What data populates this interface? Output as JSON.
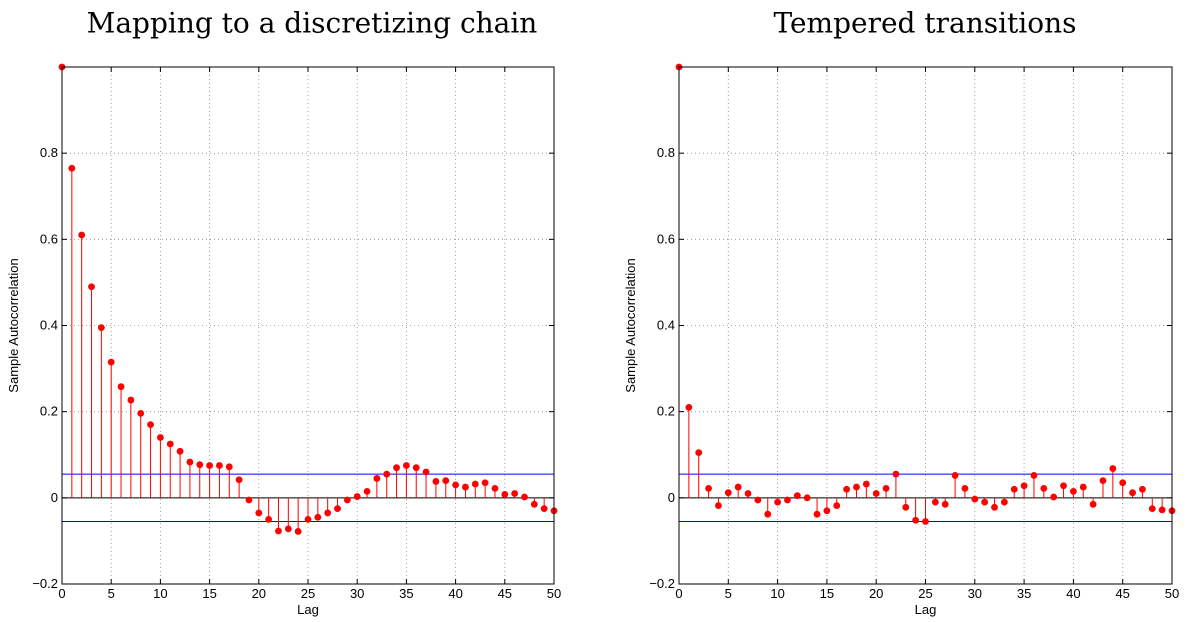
{
  "chart_data": [
    {
      "type": "stem",
      "title": "Mapping to a discretizing chain",
      "xlabel": "Lag",
      "ylabel": "Sample Autocorrelation",
      "xlim": [
        0,
        50
      ],
      "ylim": [
        -0.2,
        1
      ],
      "xticks": [
        0,
        5,
        10,
        15,
        20,
        25,
        30,
        35,
        40,
        45,
        50
      ],
      "yticks": [
        -0.2,
        0,
        0.2,
        0.4,
        0.6,
        0.8
      ],
      "ytick_labels": [
        "−0.2",
        "0",
        "0.2",
        "0.4",
        "0.6",
        "0.8"
      ],
      "grid": true,
      "confidence_bounds": [
        0.055,
        -0.055
      ],
      "colors": {
        "stem": "#ff0000",
        "bounds": "#0000ff",
        "zero_line": "#000000"
      },
      "x": [
        0,
        1,
        2,
        3,
        4,
        5,
        6,
        7,
        8,
        9,
        10,
        11,
        12,
        13,
        14,
        15,
        16,
        17,
        18,
        19,
        20,
        21,
        22,
        23,
        24,
        25,
        26,
        27,
        28,
        29,
        30,
        31,
        32,
        33,
        34,
        35,
        36,
        37,
        38,
        39,
        40,
        41,
        42,
        43,
        44,
        45,
        46,
        47,
        48,
        49,
        50
      ],
      "values": [
        1.0,
        0.765,
        0.61,
        0.49,
        0.395,
        0.315,
        0.258,
        0.227,
        0.196,
        0.17,
        0.14,
        0.125,
        0.108,
        0.083,
        0.077,
        0.075,
        0.075,
        0.072,
        0.042,
        -0.005,
        -0.035,
        -0.05,
        -0.077,
        -0.072,
        -0.078,
        -0.05,
        -0.045,
        -0.035,
        -0.025,
        -0.005,
        0.003,
        0.015,
        0.045,
        0.055,
        0.07,
        0.075,
        0.07,
        0.06,
        0.038,
        0.04,
        0.03,
        0.025,
        0.032,
        0.035,
        0.022,
        0.008,
        0.01,
        0.002,
        -0.015,
        -0.025,
        -0.03
      ]
    },
    {
      "type": "stem",
      "title": "Tempered transitions",
      "xlabel": "Lag",
      "ylabel": "Sample Autocorrelation",
      "xlim": [
        0,
        50
      ],
      "ylim": [
        -0.2,
        1
      ],
      "xticks": [
        0,
        5,
        10,
        15,
        20,
        25,
        30,
        35,
        40,
        45,
        50
      ],
      "yticks": [
        -0.2,
        0,
        0.2,
        0.4,
        0.6,
        0.8
      ],
      "ytick_labels": [
        "−0.2",
        "0",
        "0.2",
        "0.4",
        "0.6",
        "0.8"
      ],
      "grid": true,
      "confidence_bounds": [
        0.055,
        -0.055
      ],
      "colors": {
        "stem": "#ff0000",
        "bounds": "#0000ff",
        "zero_line": "#000000"
      },
      "x": [
        0,
        1,
        2,
        3,
        4,
        5,
        6,
        7,
        8,
        9,
        10,
        11,
        12,
        13,
        14,
        15,
        16,
        17,
        18,
        19,
        20,
        21,
        22,
        23,
        24,
        25,
        26,
        27,
        28,
        29,
        30,
        31,
        32,
        33,
        34,
        35,
        36,
        37,
        38,
        39,
        40,
        41,
        42,
        43,
        44,
        45,
        46,
        47,
        48,
        49,
        50
      ],
      "values": [
        1.0,
        0.21,
        0.105,
        0.022,
        -0.018,
        0.012,
        0.025,
        0.01,
        -0.005,
        -0.038,
        -0.01,
        -0.005,
        0.005,
        0.0,
        -0.038,
        -0.03,
        -0.018,
        0.02,
        0.025,
        0.032,
        0.01,
        0.022,
        0.055,
        -0.022,
        -0.052,
        -0.055,
        -0.01,
        -0.015,
        0.052,
        0.022,
        -0.003,
        -0.01,
        -0.022,
        -0.01,
        0.02,
        0.028,
        0.052,
        0.022,
        0.002,
        0.028,
        0.015,
        0.025,
        -0.015,
        0.04,
        0.068,
        0.035,
        0.012,
        0.02,
        -0.025,
        -0.028,
        -0.03
      ]
    }
  ]
}
